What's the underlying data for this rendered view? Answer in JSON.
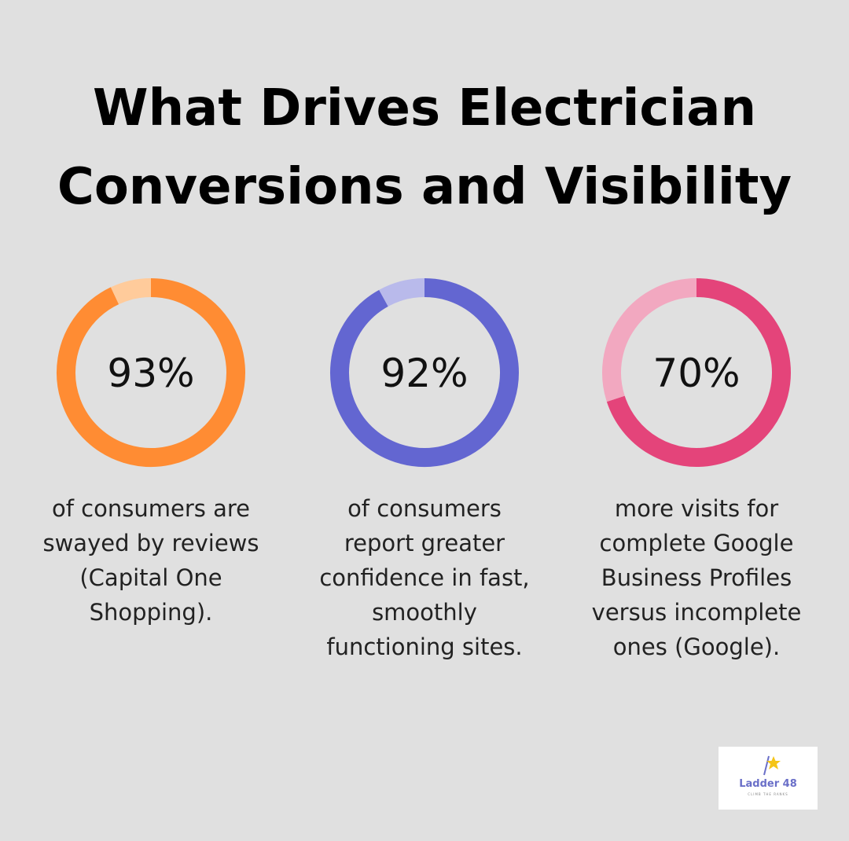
{
  "title": "What Drives Electrician Conversions and Visibility",
  "chart_data": [
    {
      "type": "donut",
      "values": [
        93,
        7
      ],
      "value_labels": [
        "93%",
        null
      ],
      "colors": [
        "#ff8c33",
        "#ffcb9b"
      ],
      "caption": "of consumers are swayed by reviews (Capital One Shopping)."
    },
    {
      "type": "donut",
      "values": [
        92,
        8
      ],
      "value_labels": [
        "92%",
        null
      ],
      "colors": [
        "#6366d1",
        "#b9baeb"
      ],
      "caption": "of consumers report greater confidence in fast, smoothly functioning sites."
    },
    {
      "type": "donut",
      "values": [
        70,
        30
      ],
      "value_labels": [
        "70%",
        null
      ],
      "colors": [
        "#e4447a",
        "#f2a8c0"
      ],
      "caption": "more visits for complete Google Business Profiles versus incomplete ones (Google)."
    }
  ],
  "logo": {
    "name": "Ladder 48",
    "tagline": "CLIMB THE RANKS"
  }
}
